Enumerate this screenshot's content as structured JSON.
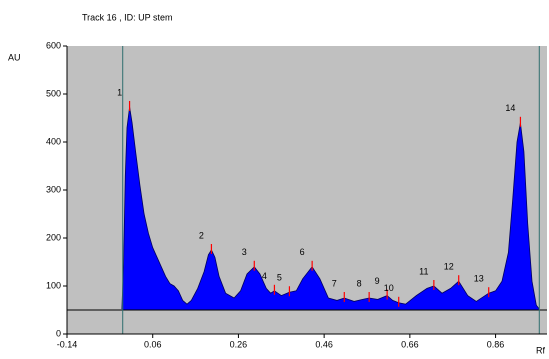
{
  "chart_data": {
    "type": "area",
    "title": "Track 16 , ID: UP stem",
    "y_label": "AU",
    "x_label": "Rf",
    "xlim": [
      -0.14,
      0.98
    ],
    "ylim": [
      0,
      600
    ],
    "xticks": [
      -0.14,
      0.06,
      0.26,
      0.46,
      0.66,
      0.86
    ],
    "yticks": [
      0,
      100,
      200,
      300,
      400,
      500,
      600
    ],
    "color": "#0000ff",
    "background": "#c0c0c0",
    "baseline": 50,
    "vlines": [
      -0.01,
      0.962
    ],
    "x": [
      -0.012,
      -0.008,
      -0.004,
      0.0,
      0.006,
      0.012,
      0.02,
      0.03,
      0.04,
      0.05,
      0.06,
      0.07,
      0.08,
      0.09,
      0.1,
      0.11,
      0.12,
      0.13,
      0.14,
      0.15,
      0.165,
      0.18,
      0.19,
      0.197,
      0.205,
      0.215,
      0.23,
      0.25,
      0.265,
      0.28,
      0.297,
      0.31,
      0.325,
      0.335,
      0.344,
      0.36,
      0.379,
      0.395,
      0.41,
      0.432,
      0.45,
      0.47,
      0.49,
      0.507,
      0.53,
      0.55,
      0.565,
      0.585,
      0.607,
      0.62,
      0.634,
      0.65,
      0.675,
      0.7,
      0.716,
      0.735,
      0.755,
      0.774,
      0.795,
      0.815,
      0.844,
      0.86,
      0.875,
      0.89,
      0.9,
      0.91,
      0.918,
      0.926,
      0.935,
      0.945,
      0.955,
      0.962
    ],
    "values": [
      52,
      150,
      330,
      430,
      473,
      440,
      380,
      310,
      250,
      210,
      180,
      160,
      140,
      120,
      105,
      100,
      90,
      70,
      62,
      70,
      95,
      130,
      165,
      175,
      160,
      120,
      85,
      75,
      90,
      125,
      140,
      125,
      95,
      85,
      90,
      80,
      87,
      90,
      115,
      140,
      115,
      75,
      70,
      75,
      68,
      72,
      75,
      72,
      80,
      70,
      65,
      62,
      80,
      95,
      100,
      85,
      95,
      110,
      80,
      68,
      85,
      90,
      110,
      170,
      280,
      400,
      440,
      380,
      230,
      110,
      60,
      52
    ],
    "peaks": [
      {
        "label": "1",
        "x": 0.006,
        "y": 473
      },
      {
        "label": "2",
        "x": 0.197,
        "y": 175
      },
      {
        "label": "3",
        "x": 0.297,
        "y": 140
      },
      {
        "label": "4",
        "x": 0.344,
        "y": 90
      },
      {
        "label": "5",
        "x": 0.379,
        "y": 87
      },
      {
        "label": "6",
        "x": 0.432,
        "y": 140
      },
      {
        "label": "7",
        "x": 0.507,
        "y": 75
      },
      {
        "label": "8",
        "x": 0.565,
        "y": 75
      },
      {
        "label": "9",
        "x": 0.607,
        "y": 80
      },
      {
        "label": "10",
        "x": 0.634,
        "y": 65
      },
      {
        "label": "11",
        "x": 0.716,
        "y": 100
      },
      {
        "label": "12",
        "x": 0.774,
        "y": 110
      },
      {
        "label": "13",
        "x": 0.844,
        "y": 85
      },
      {
        "label": "14",
        "x": 0.918,
        "y": 440
      }
    ]
  }
}
